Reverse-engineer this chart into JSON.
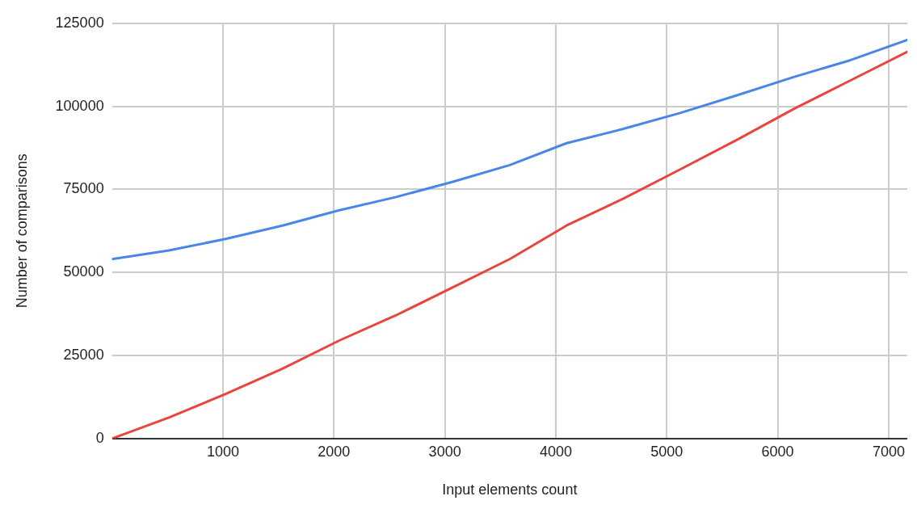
{
  "chart_data": {
    "type": "line",
    "xlabel": "Input elements count",
    "ylabel": "Number of comparisons",
    "x": [
      0,
      512,
      1024,
      1536,
      2048,
      2560,
      3072,
      3584,
      4096,
      4608,
      5120,
      5632,
      6144,
      6656,
      7168
    ],
    "series": [
      {
        "color": "#4a86e8",
        "values": [
          54000,
          56600,
          60100,
          64100,
          68700,
          72700,
          77300,
          82300,
          88900,
          93200,
          98000,
          103300,
          108800,
          113900,
          120000
        ]
      },
      {
        "color": "#e8453c",
        "values": [
          0,
          6300,
          13400,
          21000,
          29500,
          37100,
          45500,
          54000,
          64100,
          72200,
          81000,
          89900,
          99200,
          107800,
          116400
        ]
      }
    ],
    "xlim": [
      0,
      7168
    ],
    "xticks": [
      1000,
      2000,
      3000,
      4000,
      5000,
      6000,
      7000
    ],
    "ylim": [
      0,
      125000
    ],
    "yticks": [
      0,
      25000,
      50000,
      75000,
      100000,
      125000
    ],
    "grid": true,
    "legend": false,
    "marker": "none",
    "line_style": "solid"
  }
}
